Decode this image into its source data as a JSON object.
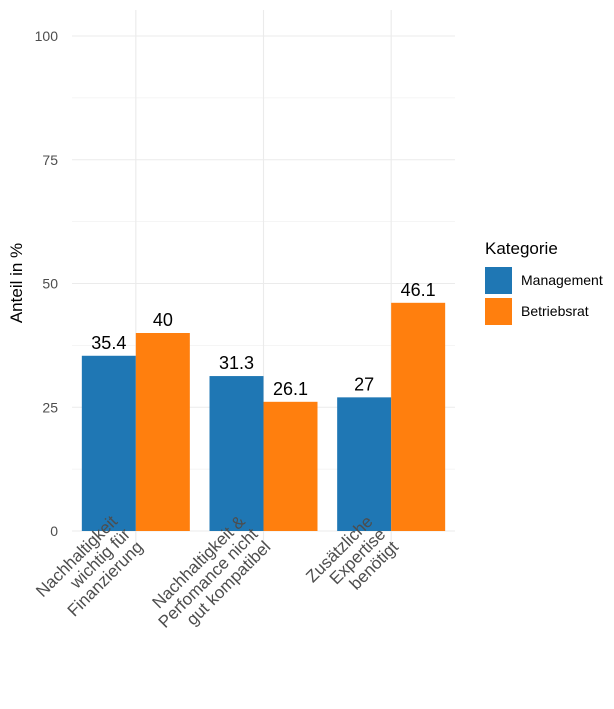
{
  "chart_data": {
    "type": "bar",
    "title": "",
    "xlabel": "",
    "ylabel": "Anteil in %",
    "ylim": [
      0,
      100
    ],
    "y_ticks": [
      0,
      25,
      50,
      75,
      100
    ],
    "grid": true,
    "legend": {
      "title": "Kategorie",
      "position": "right"
    },
    "categories": [
      [
        "Nachhaltigkeit",
        "wichtig für",
        "Finanzierung"
      ],
      [
        "Nachhaltigkeit &",
        "Perfomance nicht",
        "gut kompatibel"
      ],
      [
        "Zusätzliche",
        "Expertise",
        "benötigt"
      ]
    ],
    "series": [
      {
        "name": "Management",
        "color": "#1f77b4",
        "values": [
          35.4,
          31.3,
          27
        ],
        "labels": [
          "35.4",
          "31.3",
          "27"
        ]
      },
      {
        "name": "Betriebsrat",
        "color": "#ff7f0e",
        "values": [
          40,
          26.1,
          46.1
        ],
        "labels": [
          "40",
          "26.1",
          "46.1"
        ]
      }
    ]
  }
}
